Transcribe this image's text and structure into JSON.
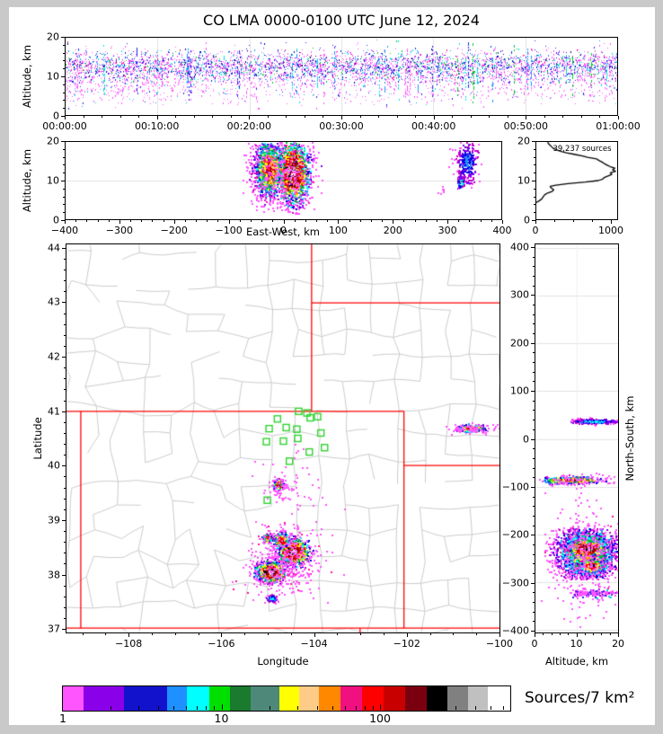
{
  "title": "CO LMA 0000-0100 UTC June 12, 2024",
  "labels": {
    "altitude_km": "Altitude, km",
    "east_west": "East-West, km",
    "latitude": "Latitude",
    "longitude": "Longitude",
    "north_south": "North-South, km",
    "colorbar": "Sources/7 km²",
    "hist_annotation": "39,237 sources"
  },
  "axes": {
    "time": [
      "00:00:00",
      "00:10:00",
      "00:20:00",
      "00:30:00",
      "00:40:00",
      "00:50:00",
      "01:00:00"
    ],
    "alt": [
      "0",
      "10",
      "20"
    ],
    "ew": [
      "−400",
      "−300",
      "−200",
      "−100",
      "0",
      "100",
      "200",
      "300",
      "400"
    ],
    "hist_x": [
      "0",
      "1000"
    ],
    "map_x": [
      "−108",
      "−106",
      "−104",
      "−102",
      "−100"
    ],
    "map_y": [
      "37",
      "38",
      "39",
      "40",
      "41",
      "42",
      "43",
      "44"
    ],
    "ns_y": [
      "400",
      "300",
      "200",
      "100",
      "0",
      "−100",
      "−200",
      "−300",
      "−400"
    ],
    "ns_x": [
      "0",
      "10",
      "20"
    ],
    "cbar": [
      "1",
      "10",
      "100"
    ]
  },
  "style": {
    "frame_gray": "#c9c9c9",
    "county_line": "#cbcbcb",
    "state_border": "#ff0000",
    "station_green": "#2fd32f",
    "gridline": "#e2e2e2",
    "radial_palette": [
      "#FFFFFF",
      "#C0C0C0",
      "#6E6E6E",
      "#000000",
      "#7A0010",
      "#B50000",
      "#E80000",
      "#FF0000",
      "#FF8800",
      "#FFCC77",
      "#FFFF00",
      "#2E8B57",
      "#00C832",
      "#00FFFF",
      "#1E90FF",
      "#0000E0",
      "#7A00F0",
      "#C800C8",
      "#FF50FF"
    ]
  },
  "chart_data": [
    {
      "id": "time_height",
      "type": "scatter",
      "ylabel": "Altitude, km",
      "xlim_minutes": [
        0,
        60
      ],
      "ylim": [
        0,
        20
      ],
      "x_tick_labels": [
        "00:00:00",
        "00:10:00",
        "00:20:00",
        "00:30:00",
        "00:40:00",
        "00:50:00",
        "01:00:00"
      ],
      "grid": "vertical every 10 min",
      "clusters": [
        {
          "mode": "mix",
          "xu": [
            0,
            60
          ],
          "y": 12.6,
          "sy": 2.1,
          "clip": {
            "y": [
              8.4,
              19.9
            ]
          },
          "n": 4300,
          "colors": [
            [
              "#FF55FF",
              0.43
            ],
            [
              "#2222E8",
              0.2
            ],
            [
              "#0000A0",
              0.07
            ],
            [
              "#1E90FF",
              0.1
            ],
            [
              "#00E0E0",
              0.09
            ],
            [
              "#00C832",
              0.06
            ],
            [
              "#FF1493",
              0.05
            ]
          ]
        },
        {
          "mode": "mix",
          "xu": [
            0,
            60
          ],
          "xpow": 1.2,
          "y": 7.6,
          "sy": 2.4,
          "clip": {
            "y": [
              1.6,
              9.9
            ]
          },
          "n": 1150,
          "colors": [
            [
              "#FF55FF",
              0.8
            ],
            [
              "#2222E8",
              0.1
            ],
            [
              "#1E90FF",
              0.04
            ],
            [
              "#00E0E0",
              0.06
            ]
          ]
        }
      ],
      "streaks": {
        "count": 46,
        "x_range": [
          1,
          59
        ],
        "alt_top_mean": 16.5,
        "alt_top_sd": 1.8,
        "alt_bottom_range": [
          3,
          8
        ],
        "points_per_streak": 13,
        "colors": [
          "#00E0E0",
          "#00C832",
          "#2222E8",
          "#FF55FF",
          "#1E90FF"
        ]
      }
    },
    {
      "id": "east_west_height",
      "type": "scatter",
      "xlabel": "East-West, km",
      "ylabel": "Altitude, km",
      "xlim": [
        -400,
        400
      ],
      "ylim": [
        0,
        20
      ],
      "grid": "horizontal at 10 km",
      "clusters": [
        {
          "mode": "radial",
          "core": 5,
          "x": -27,
          "sx": 13,
          "y": 13,
          "sy": 3.5,
          "clip": {
            "x": [
              -68,
              -6
            ],
            "y": [
              1.5,
              20
            ]
          },
          "n": 1500
        },
        {
          "mode": "radial",
          "core": 0,
          "x": 16,
          "sx": 14,
          "y": 12.2,
          "sy": 3.8,
          "clip": {
            "x": [
              -8,
              55
            ],
            "y": [
              1.5,
              20
            ]
          },
          "n": 1950
        },
        {
          "mode": "mix",
          "x": -5,
          "sx": 36,
          "y": 12,
          "sy": 5.4,
          "clip": {
            "x": [
              -75,
              72
            ],
            "y": [
              1,
              20
            ]
          },
          "n": 430,
          "colors": [
            [
              "#FF55FF",
              0.86
            ],
            [
              "#FF1493",
              0.08
            ],
            [
              "#8A00E8",
              0.06
            ]
          ]
        },
        {
          "mode": "radial",
          "core": 14,
          "x": 336,
          "sx": 10,
          "y": 15,
          "sy": 3,
          "clip": {
            "x": [
              300,
              362
            ],
            "y": [
              8.2,
              20
            ]
          },
          "n": 310
        },
        {
          "mode": "radial",
          "core": 11,
          "x": 325,
          "sx": 3.5,
          "y": 9.6,
          "sy": 0.9,
          "n": 50
        },
        {
          "mode": "mix",
          "x": 288,
          "sx": 3,
          "y": 7,
          "sy": 0.8,
          "n": 7,
          "colors": [
            [
              "#FF55FF",
              1
            ]
          ]
        }
      ]
    },
    {
      "id": "altitude_histogram",
      "type": "line",
      "annotation": "39,237 sources",
      "xlim": [
        0,
        1095
      ],
      "ylim": [
        0,
        20
      ],
      "x_ticks": [
        0,
        1000
      ],
      "points_alt_count": [
        [
          4.3,
          0
        ],
        [
          4.8,
          40
        ],
        [
          5.2,
          70
        ],
        [
          5.8,
          90
        ],
        [
          6.3,
          110
        ],
        [
          6.8,
          150
        ],
        [
          7.2,
          210
        ],
        [
          7.6,
          230
        ],
        [
          7.9,
          210
        ],
        [
          8.2,
          190
        ],
        [
          8.5,
          185
        ],
        [
          8.8,
          260
        ],
        [
          9.2,
          420
        ],
        [
          9.6,
          650
        ],
        [
          10.0,
          820
        ],
        [
          10.4,
          880
        ],
        [
          10.8,
          900
        ],
        [
          11.2,
          950
        ],
        [
          11.6,
          1000
        ],
        [
          12.0,
          980
        ],
        [
          12.4,
          1050
        ],
        [
          12.8,
          1010
        ],
        [
          13.2,
          1040
        ],
        [
          13.6,
          980
        ],
        [
          14.0,
          940
        ],
        [
          14.4,
          900
        ],
        [
          14.8,
          870
        ],
        [
          15.2,
          830
        ],
        [
          15.6,
          800
        ],
        [
          16.0,
          680
        ],
        [
          16.4,
          600
        ],
        [
          16.8,
          500
        ],
        [
          17.2,
          400
        ],
        [
          17.6,
          320
        ],
        [
          18.0,
          260
        ],
        [
          18.4,
          220
        ],
        [
          18.8,
          200
        ],
        [
          19.2,
          180
        ],
        [
          19.6,
          160
        ],
        [
          20.0,
          150
        ]
      ]
    },
    {
      "id": "plan_view_map",
      "type": "scatter",
      "xlabel": "Longitude",
      "ylabel": "Latitude",
      "xlim": [
        -109.36,
        -99.98
      ],
      "ylim": [
        36.92,
        44.08
      ],
      "state_borders": [
        {
          "x1": -109.36,
          "y1": 41,
          "x2": -102.05,
          "y2": 41
        },
        {
          "x1": -109.05,
          "y1": 37,
          "x2": -109.05,
          "y2": 41
        },
        {
          "x1": -104.05,
          "y1": 41,
          "x2": -104.05,
          "y2": 44.08
        },
        {
          "x1": -104.05,
          "y1": 43,
          "x2": -99.98,
          "y2": 43
        },
        {
          "x1": -102.05,
          "y1": 37,
          "x2": -102.05,
          "y2": 41
        },
        {
          "x1": -102.05,
          "y1": 40,
          "x2": -99.98,
          "y2": 40
        },
        {
          "x1": -109.36,
          "y1": 37,
          "x2": -99.98,
          "y2": 37
        },
        {
          "x1": -103.0,
          "y1": 36.92,
          "x2": -103.0,
          "y2": 37.0
        }
      ],
      "stations_lon_lat": [
        [
          -104.33,
          41.0
        ],
        [
          -104.15,
          40.97
        ],
        [
          -104.08,
          40.88
        ],
        [
          -103.92,
          40.9
        ],
        [
          -104.79,
          40.86
        ],
        [
          -104.6,
          40.7
        ],
        [
          -104.97,
          40.68
        ],
        [
          -104.37,
          40.67
        ],
        [
          -103.85,
          40.6
        ],
        [
          -105.03,
          40.44
        ],
        [
          -104.66,
          40.45
        ],
        [
          -104.35,
          40.5
        ],
        [
          -103.77,
          40.33
        ],
        [
          -104.1,
          40.25
        ],
        [
          -104.53,
          40.08
        ],
        [
          -105.01,
          39.36
        ]
      ],
      "clusters": [
        {
          "mode": "radial",
          "core": 0,
          "x": -104.45,
          "y": 38.42,
          "sx": 0.17,
          "sy": 0.12,
          "n": 950
        },
        {
          "mode": "radial",
          "core": 0,
          "x": -104.95,
          "y": 38.05,
          "sx": 0.15,
          "sy": 0.095,
          "n": 850
        },
        {
          "mode": "radial",
          "core": 5,
          "x": -104.72,
          "y": 38.63,
          "sx": 0.09,
          "sy": 0.07,
          "n": 300
        },
        {
          "mode": "radial",
          "core": 5,
          "x": -105.02,
          "y": 38.67,
          "sx": 0.05,
          "sy": 0.038,
          "n": 120
        },
        {
          "mode": "mix",
          "x": -104.62,
          "y": 38.32,
          "sx": 0.38,
          "sy": 0.33,
          "clip": {
            "y": [
              37.35,
              38.98
            ]
          },
          "n": 380,
          "colors": [
            [
              "#FF55FF",
              0.9
            ],
            [
              "#FF1493",
              0.1
            ]
          ]
        },
        {
          "mode": "radial",
          "core": 2,
          "x": -104.78,
          "y": 39.665,
          "sx": 0.055,
          "sy": 0.04,
          "n": 170
        },
        {
          "mode": "mix",
          "x": -104.73,
          "y": 39.6,
          "sx": 0.13,
          "sy": 0.12,
          "n": 55,
          "colors": [
            [
              "#FF55FF",
              1
            ]
          ]
        },
        {
          "mode": "radial",
          "core": 12,
          "x": -104.92,
          "y": 37.555,
          "sx": 0.05,
          "sy": 0.032,
          "n": 130
        },
        {
          "mode": "radial",
          "core": 3,
          "x": -100.6,
          "y": 40.7,
          "sx": 0.14,
          "sy": 0.032,
          "n": 310
        },
        {
          "mode": "mix",
          "x": -100.62,
          "y": 40.7,
          "sx": 0.25,
          "sy": 0.05,
          "n": 70,
          "colors": [
            [
              "#FF55FF",
              1
            ]
          ]
        },
        {
          "mode": "mix",
          "x": -104.35,
          "y": 39.7,
          "sx": 0.4,
          "sy": 0.5,
          "clip": {
            "y": [
              38.95,
              40.55
            ]
          },
          "n": 45,
          "colors": [
            [
              "#FF55FF",
              1
            ]
          ]
        },
        {
          "mode": "mix",
          "x": -104.85,
          "y": 37.85,
          "sx": 0.3,
          "sy": 0.22,
          "n": 28,
          "colors": [
            [
              "#FF55FF",
              1
            ]
          ]
        }
      ]
    },
    {
      "id": "north_south_height",
      "type": "scatter",
      "xlabel": "Altitude, km",
      "ylabel": "North-South, km",
      "xlim": [
        0,
        20
      ],
      "ylim": [
        -400,
        400
      ],
      "grid": "horizontal every 100 km",
      "clusters": [
        {
          "mode": "radial",
          "core": 8,
          "x": 12.3,
          "sx": 3.6,
          "y": -237,
          "sy": 26,
          "clip": {
            "x": [
              3,
              20
            ],
            "y": [
              -293,
              -186
            ]
          },
          "n": 2400
        },
        {
          "mode": "radial",
          "core": 0,
          "x": 12.3,
          "sx": 2.0,
          "y": -228,
          "sy": 9,
          "n": 400
        },
        {
          "mode": "radial",
          "core": 3,
          "x": 13.8,
          "sx": 1.5,
          "y": -265,
          "sy": 7,
          "n": 280
        },
        {
          "mode": "mix",
          "x": 12,
          "sx": 5,
          "y": -237,
          "sy": 42,
          "clip": {
            "x": [
              2,
              20
            ],
            "y": [
              -345,
              -150
            ]
          },
          "n": 420,
          "colors": [
            [
              "#FF55FF",
              0.88
            ],
            [
              "#FF1493",
              0.12
            ]
          ]
        },
        {
          "mode": "radial",
          "core": 4,
          "x": 8.5,
          "sx": 3.6,
          "y": -85,
          "sy": 3.5,
          "clip": {
            "x": [
              2,
              20
            ],
            "y": [
              -98,
              -71
            ]
          },
          "n": 520
        },
        {
          "mode": "mix",
          "x": 12,
          "sx": 5,
          "y": -85,
          "sy": 7,
          "clip": {
            "y": [
              -110,
              -60
            ]
          },
          "n": 80,
          "colors": [
            [
              "#FF55FF",
              1
            ]
          ]
        },
        {
          "mode": "radial",
          "core": 13,
          "x": 14.5,
          "sx": 3,
          "y": 38,
          "sy": 2.6,
          "clip": {
            "x": [
              8,
              20
            ],
            "y": [
              29,
              47
            ]
          },
          "n": 310
        },
        {
          "mode": "mix",
          "x": 14.5,
          "sx": 2.8,
          "y": -322,
          "sy": 4,
          "clip": {
            "x": [
              8,
              20
            ]
          },
          "n": 170,
          "colors": [
            [
              "#FF55FF",
              0.6
            ],
            [
              "#2222E8",
              0.2
            ],
            [
              "#8A00E8",
              0.14
            ],
            [
              "#00E0E0",
              0.06
            ]
          ]
        },
        {
          "mode": "mix",
          "x": 12,
          "sx": 4,
          "y": -352,
          "sy": 25,
          "n": 22,
          "colors": [
            [
              "#FF55FF",
              1
            ]
          ]
        },
        {
          "mode": "mix",
          "x": 13,
          "sx": 3,
          "y": -132,
          "sy": 12,
          "n": 12,
          "colors": [
            [
              "#FF55FF",
              1
            ]
          ]
        }
      ]
    },
    {
      "id": "colorbar_legend",
      "type": "legend",
      "label": "Sources/7 km²",
      "scale": "log",
      "tick_values": [
        1,
        10,
        100
      ],
      "value_range": [
        1,
        658
      ],
      "segments": [
        {
          "color": "#FF55FF",
          "w": 23
        },
        {
          "color": "#8A00E8",
          "w": 45
        },
        {
          "color": "#1212CC",
          "w": 48
        },
        {
          "color": "#1E90FF",
          "w": 22
        },
        {
          "color": "#00FFFF",
          "w": 25
        },
        {
          "color": "#00E000",
          "w": 23
        },
        {
          "color": "#1A7A2E",
          "w": 23
        },
        {
          "color": "#4E8878",
          "w": 32
        },
        {
          "color": "#FFFF00",
          "w": 22
        },
        {
          "color": "#FFCC88",
          "w": 22
        },
        {
          "color": "#FF8800",
          "w": 24
        },
        {
          "color": "#F01080",
          "w": 24
        },
        {
          "color": "#FF0000",
          "w": 24
        },
        {
          "color": "#C80000",
          "w": 24
        },
        {
          "color": "#7A0010",
          "w": 24
        },
        {
          "color": "#000000",
          "w": 23
        },
        {
          "color": "#808080",
          "w": 23
        },
        {
          "color": "#C0C0C0",
          "w": 22
        },
        {
          "color": "#FFFFFF",
          "w": 25
        }
      ]
    }
  ]
}
